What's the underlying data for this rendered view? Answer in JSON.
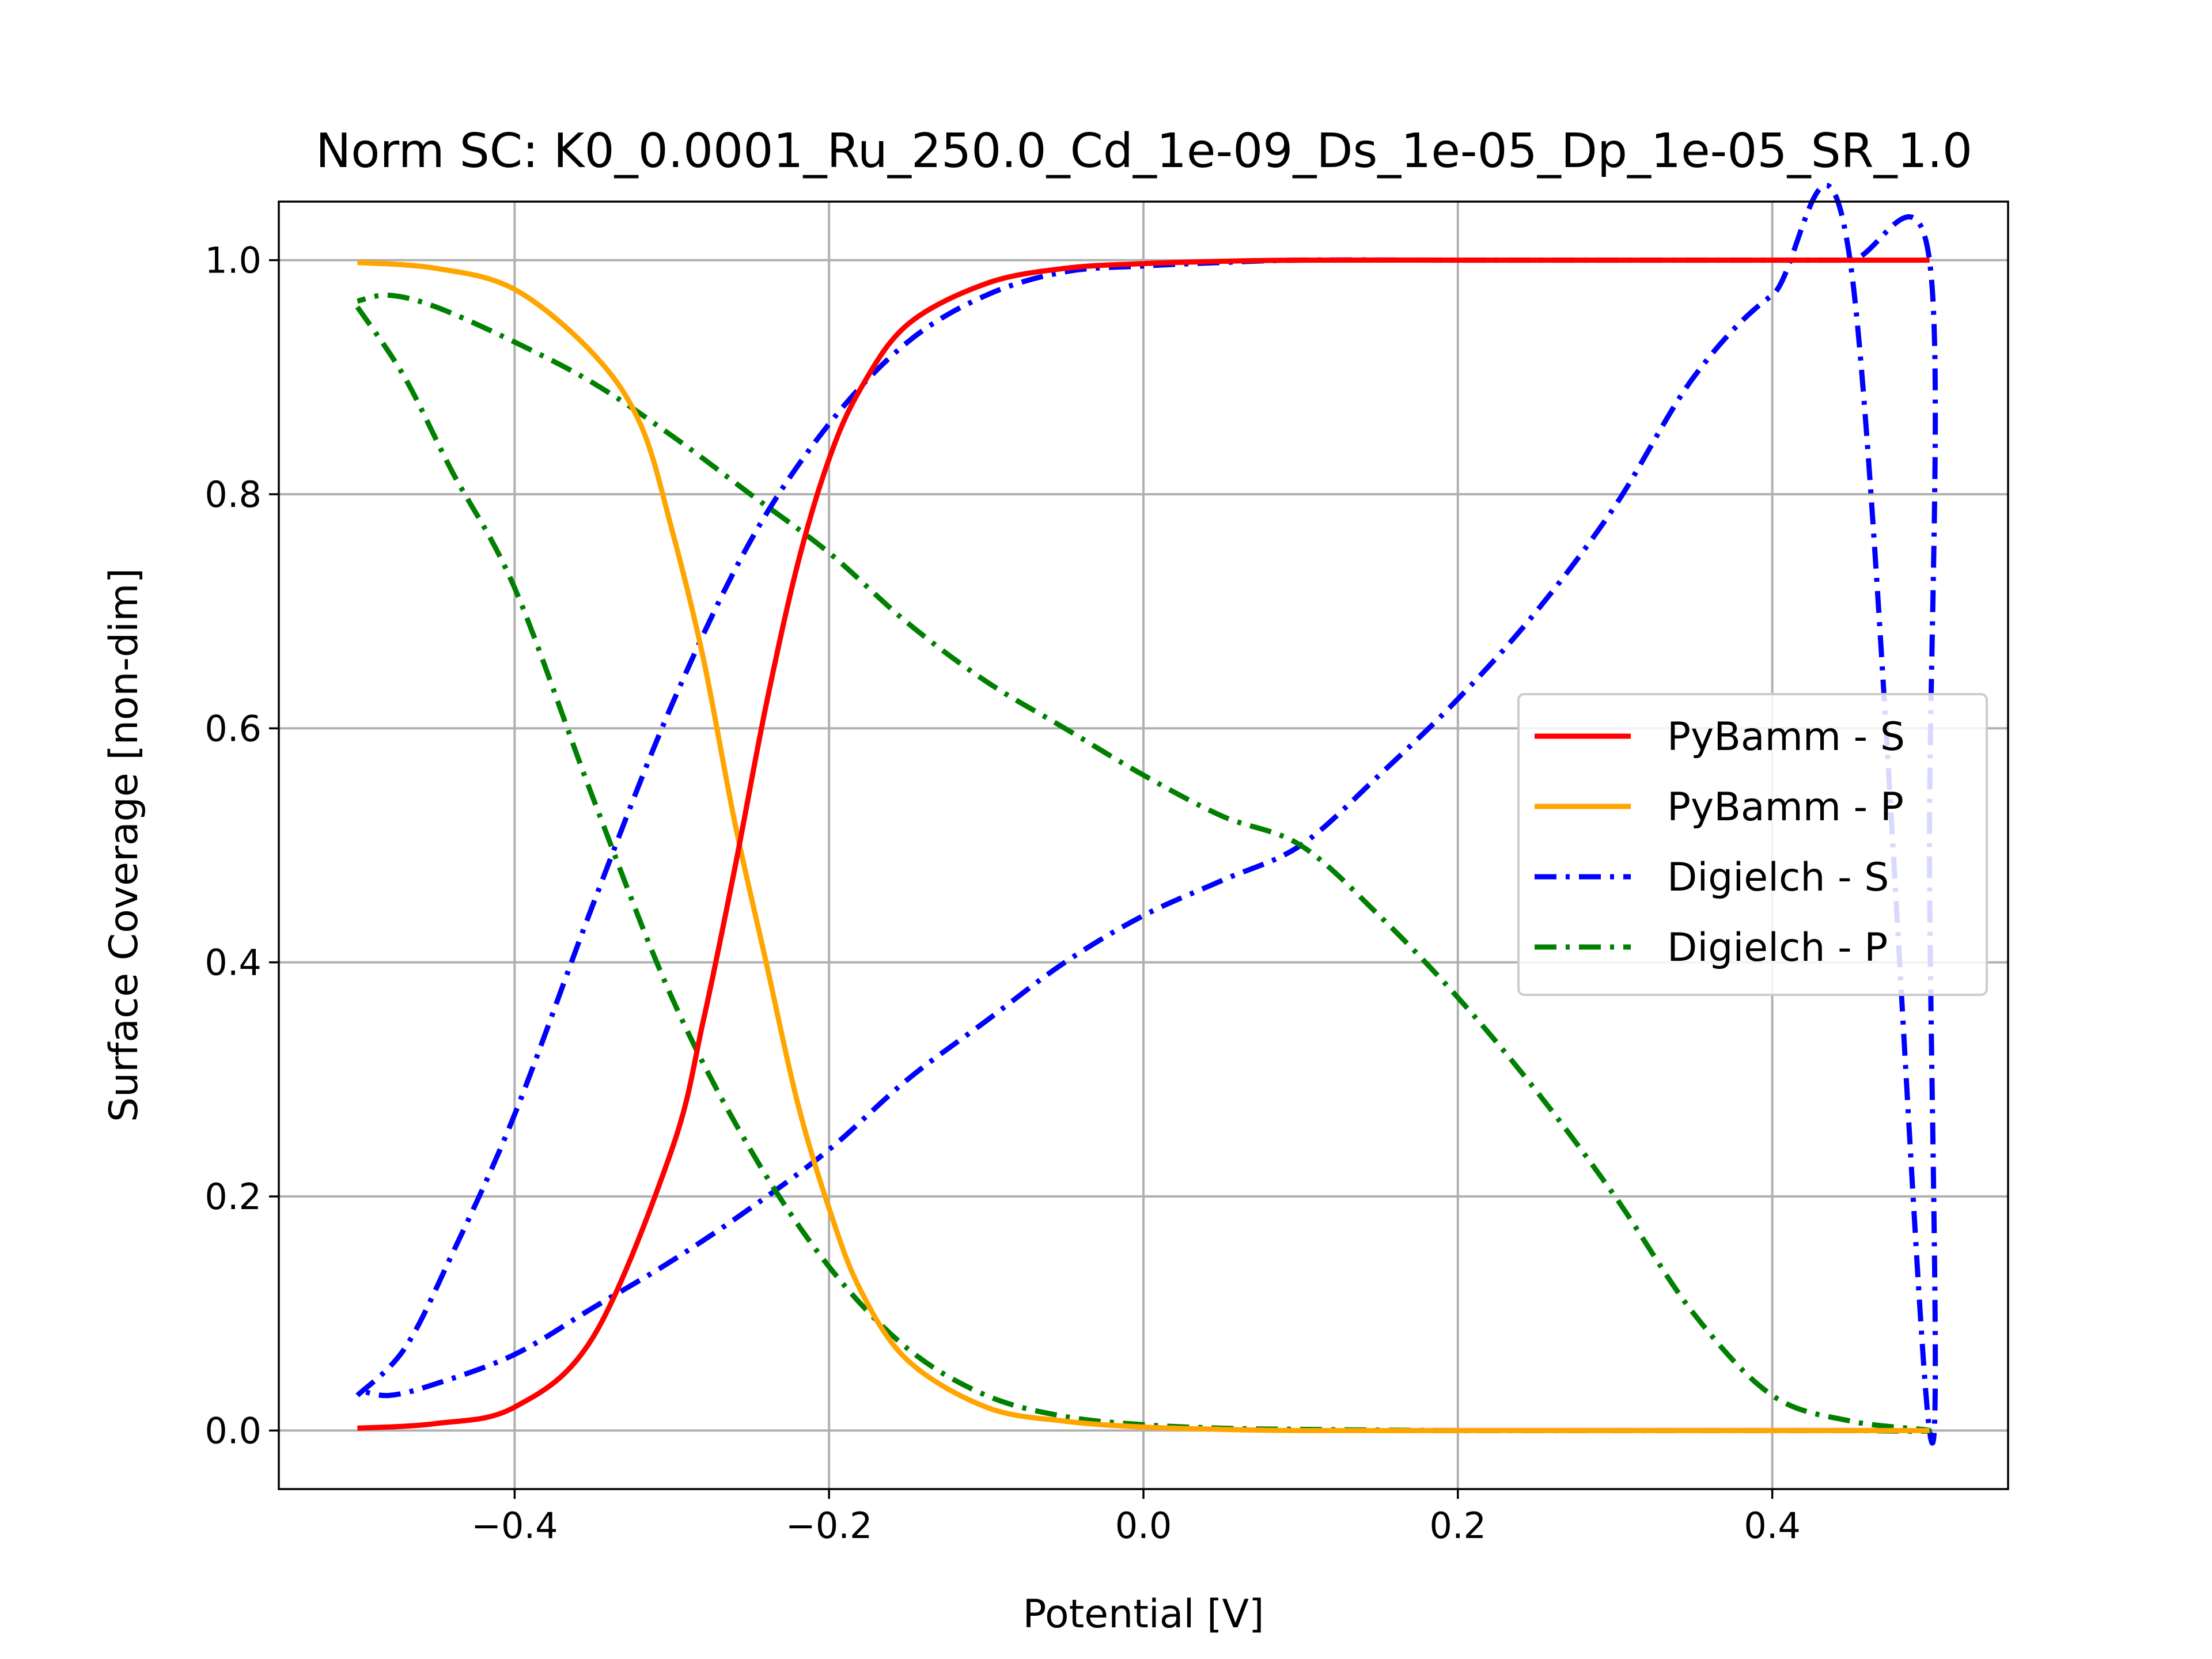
{
  "chart_data": {
    "type": "line",
    "title": "Norm SC: K0_0.0001_Ru_250.0_Cd_1e-09_Ds_1e-05_Dp_1e-05_SR_1.0",
    "xlabel": "Potential [V]",
    "ylabel": "Surface Coverage [non-dim]",
    "xlim": [
      -0.55,
      0.55
    ],
    "ylim": [
      -0.05,
      1.05
    ],
    "xticks": [
      -0.4,
      -0.2,
      0.0,
      0.2,
      0.4
    ],
    "xtick_labels": [
      "−0.4",
      "−0.2",
      "0.0",
      "0.2",
      "0.4"
    ],
    "yticks": [
      0.0,
      0.2,
      0.4,
      0.6,
      0.8,
      1.0
    ],
    "ytick_labels": [
      "0.0",
      "0.2",
      "0.4",
      "0.6",
      "0.8",
      "1.0"
    ],
    "grid": true,
    "legend_position": "center-right",
    "series": [
      {
        "name": "PyBamm - S",
        "color": "#ff0000",
        "style": "solid",
        "x": [
          -0.5,
          -0.45,
          -0.4,
          -0.35,
          -0.3,
          -0.28,
          -0.26,
          -0.24,
          -0.22,
          -0.2,
          -0.18,
          -0.15,
          -0.1,
          -0.05,
          0.0,
          0.05,
          0.1,
          0.2,
          0.3,
          0.4,
          0.5
        ],
        "y": [
          0.002,
          0.006,
          0.02,
          0.08,
          0.24,
          0.35,
          0.48,
          0.62,
          0.74,
          0.83,
          0.89,
          0.945,
          0.98,
          0.993,
          0.997,
          0.999,
          1.0,
          1.0,
          1.0,
          1.0,
          1.0
        ]
      },
      {
        "name": "PyBamm - P",
        "color": "#ffa500",
        "style": "solid",
        "x": [
          -0.5,
          -0.45,
          -0.4,
          -0.35,
          -0.32,
          -0.3,
          -0.28,
          -0.26,
          -0.24,
          -0.22,
          -0.2,
          -0.18,
          -0.15,
          -0.1,
          -0.05,
          0.0,
          0.05,
          0.1,
          0.2,
          0.3,
          0.4,
          0.5
        ],
        "y": [
          0.998,
          0.993,
          0.975,
          0.92,
          0.86,
          0.77,
          0.66,
          0.52,
          0.4,
          0.28,
          0.19,
          0.12,
          0.06,
          0.02,
          0.008,
          0.003,
          0.001,
          0.0,
          0.0,
          0.0,
          0.0,
          0.0
        ]
      },
      {
        "name": "Digielch - S",
        "color": "#0000ff",
        "style": "dashdot",
        "x": [
          -0.5,
          -0.47,
          -0.44,
          -0.4,
          -0.35,
          -0.3,
          -0.25,
          -0.2,
          -0.15,
          -0.1,
          -0.05,
          0.0,
          0.05,
          0.1,
          0.2,
          0.3,
          0.4,
          0.45,
          0.5,
          0.5,
          0.5,
          0.45,
          0.4,
          0.35,
          0.3,
          0.25,
          0.2,
          0.15,
          0.1,
          0.05,
          0.0,
          -0.05,
          -0.1,
          -0.15,
          -0.2,
          -0.25,
          -0.3,
          -0.35,
          -0.4,
          -0.45,
          -0.48,
          -0.5
        ],
        "y": [
          0.03,
          0.07,
          0.15,
          0.27,
          0.45,
          0.62,
          0.76,
          0.86,
          0.93,
          0.97,
          0.99,
          0.995,
          0.998,
          1.0,
          1.0,
          1.0,
          1.0,
          1.0,
          1.0,
          0.5,
          0.0,
          0.995,
          0.97,
          0.9,
          0.79,
          0.7,
          0.625,
          0.56,
          0.5,
          0.47,
          0.44,
          0.4,
          0.35,
          0.3,
          0.24,
          0.19,
          0.145,
          0.105,
          0.065,
          0.04,
          0.03,
          0.035
        ]
      },
      {
        "name": "Digielch - P",
        "color": "#008000",
        "style": "dashdot",
        "x": [
          -0.5,
          -0.47,
          -0.44,
          -0.4,
          -0.35,
          -0.3,
          -0.25,
          -0.2,
          -0.15,
          -0.1,
          -0.05,
          0.0,
          0.05,
          0.1,
          0.2,
          0.3,
          0.4,
          0.45,
          0.5,
          0.45,
          0.4,
          0.35,
          0.3,
          0.25,
          0.2,
          0.15,
          0.1,
          0.05,
          0.0,
          -0.05,
          -0.1,
          -0.15,
          -0.2,
          -0.25,
          -0.3,
          -0.35,
          -0.4,
          -0.45,
          -0.48,
          -0.5
        ],
        "y": [
          0.96,
          0.9,
          0.82,
          0.72,
          0.54,
          0.37,
          0.24,
          0.14,
          0.07,
          0.03,
          0.012,
          0.005,
          0.002,
          0.001,
          0.0,
          0.0,
          0.0,
          0.0,
          0.0,
          0.008,
          0.03,
          0.1,
          0.2,
          0.29,
          0.37,
          0.44,
          0.5,
          0.525,
          0.56,
          0.6,
          0.64,
          0.69,
          0.75,
          0.8,
          0.85,
          0.895,
          0.93,
          0.96,
          0.97,
          0.965
        ]
      }
    ]
  }
}
